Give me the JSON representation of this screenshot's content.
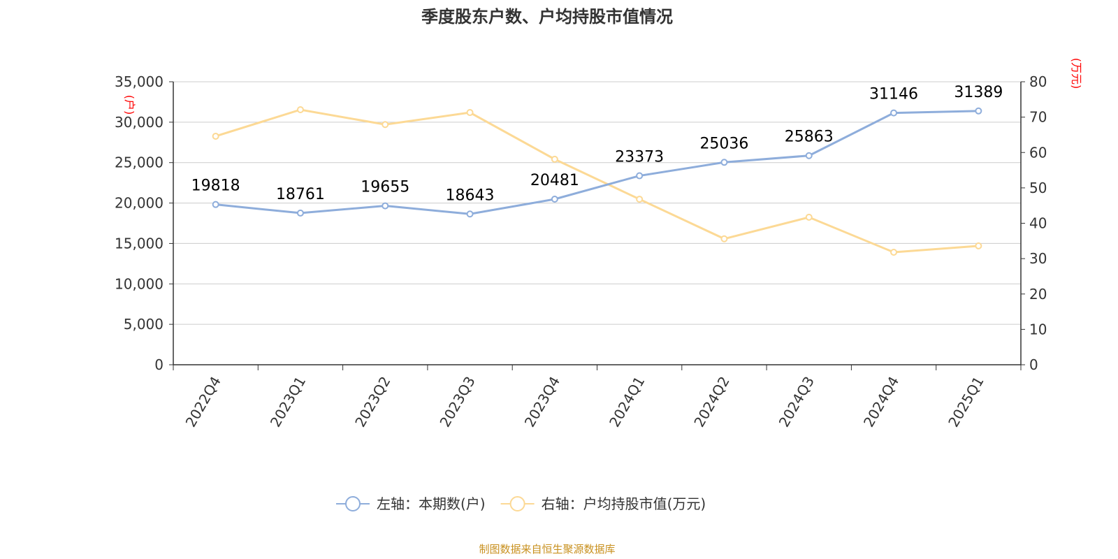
{
  "chart_data": {
    "type": "line",
    "title": "季度股东户数、户均持股市值情况",
    "categories": [
      "2022Q4",
      "2023Q1",
      "2023Q2",
      "2023Q3",
      "2023Q4",
      "2024Q1",
      "2024Q2",
      "2024Q3",
      "2024Q4",
      "2025Q1"
    ],
    "left_axis": {
      "unit": "(户)",
      "ylim": [
        0,
        35000
      ],
      "ticks": [
        "0",
        "5,000",
        "10,000",
        "15,000",
        "20,000",
        "25,000",
        "30,000",
        "35,000"
      ]
    },
    "right_axis": {
      "unit": "(万元)",
      "ylim": [
        0,
        80
      ],
      "ticks": [
        "0",
        "10",
        "20",
        "30",
        "40",
        "50",
        "60",
        "70",
        "80"
      ]
    },
    "series": [
      {
        "name": "左轴：本期数(户)",
        "axis": "left",
        "color": "#8eaddb",
        "values": [
          19818,
          18761,
          19655,
          18643,
          20481,
          23373,
          25036,
          25863,
          31146,
          31389
        ],
        "show_labels": true
      },
      {
        "name": "右轴：户均持股市值(万元)",
        "axis": "right",
        "color": "#fcd995",
        "values": [
          64.6,
          72.1,
          67.9,
          71.3,
          58.1,
          46.8,
          35.6,
          41.7,
          31.8,
          33.6
        ],
        "show_labels": false
      }
    ],
    "grid": true,
    "legend_position": "bottom"
  },
  "source": "制图数据来自恒生聚源数据库"
}
